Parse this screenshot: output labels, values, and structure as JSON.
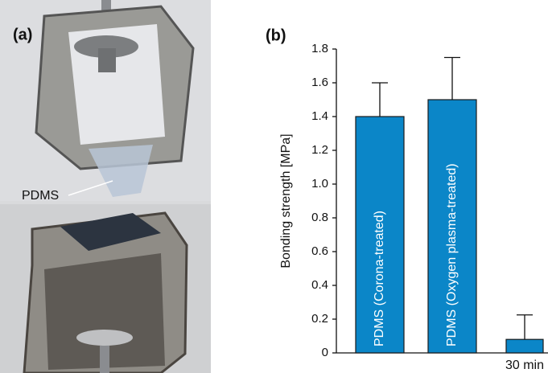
{
  "photo": {
    "panel_label": "(a)",
    "annotation": "PDMS"
  },
  "chart_data": {
    "type": "bar",
    "title": "(b)",
    "y_label": "Bonding strength [MPa]",
    "categories": [
      "PDMS (Corona-treated)",
      "PDMS (Oxygen plasma-treated)",
      "30 min"
    ],
    "values": [
      1.4,
      1.5,
      0.08
    ],
    "errors": [
      0.2,
      0.25,
      0.145
    ],
    "color": "#0b86c8",
    "ylim": [
      0,
      1.8
    ],
    "yticks": [
      0,
      0.2,
      0.4,
      0.6,
      0.8,
      {
        "value": 1,
        "label": "1.0"
      },
      1.2,
      1.4,
      1.6,
      1.8
    ]
  }
}
